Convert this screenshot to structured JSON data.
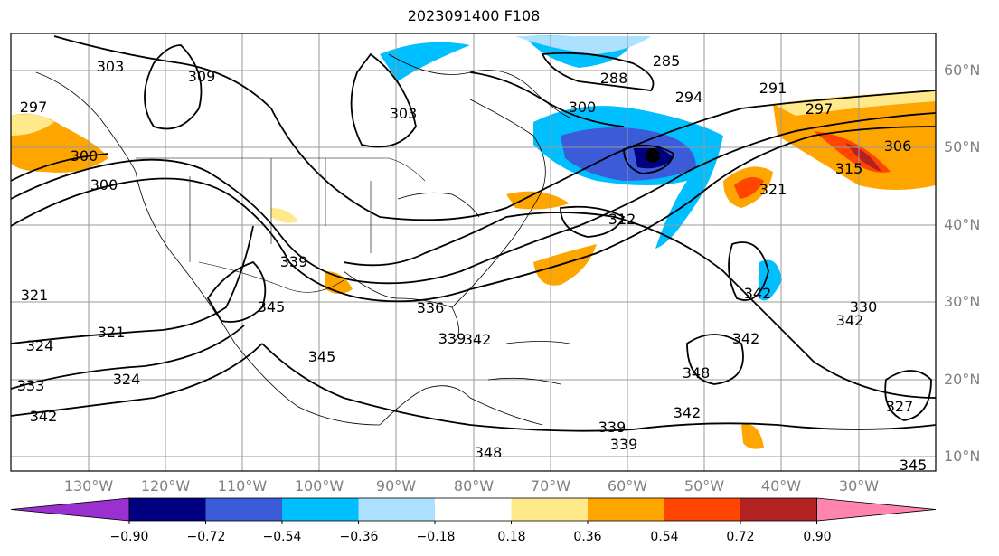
{
  "title": "2023091400 F108",
  "lat_labels": [
    "60°N",
    "50°N",
    "40°N",
    "30°N",
    "20°N",
    "10°N"
  ],
  "lon_labels": [
    "130°W",
    "120°W",
    "110°W",
    "100°W",
    "90°W",
    "80°W",
    "70°W",
    "60°W",
    "50°W",
    "40°W",
    "30°W"
  ],
  "colorbar": {
    "ticks": [
      "−0.90",
      "−0.72",
      "−0.54",
      "−0.36",
      "−0.18",
      "0.18",
      "0.36",
      "0.54",
      "0.72",
      "0.90"
    ],
    "colors": [
      "#9b30d0",
      "#000080",
      "#3b5bd8",
      "#00bfff",
      "#aee0ff",
      "#ffffff",
      "#ffe98a",
      "#ffa500",
      "#ff4500",
      "#b22222",
      "#ff85b0"
    ]
  },
  "contour_labels": [
    "303",
    "309",
    "285",
    "288",
    "294",
    "291",
    "297",
    "306",
    "315",
    "297",
    "300",
    "303",
    "300",
    "300",
    "312",
    "321",
    "342",
    "342",
    "339",
    "345",
    "321",
    "324",
    "321",
    "324",
    "333",
    "342",
    "339",
    "348",
    "348",
    "342",
    "342",
    "345",
    "342",
    "330",
    "327",
    "339",
    "336",
    "345",
    "339"
  ]
}
